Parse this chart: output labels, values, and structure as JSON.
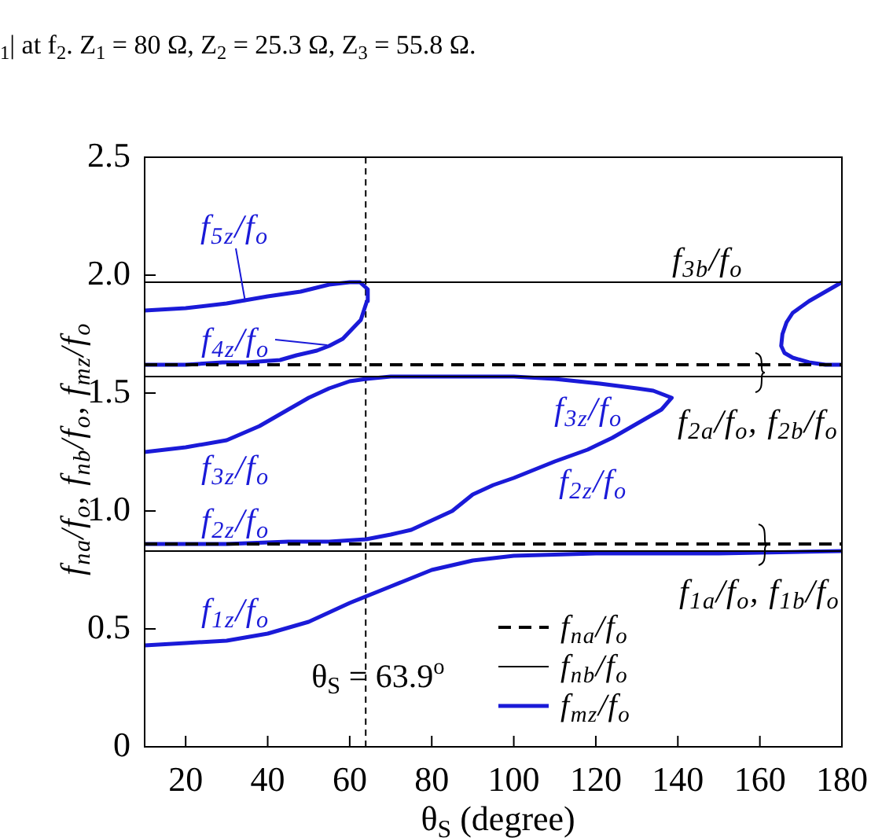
{
  "chart_data": {
    "type": "line",
    "xlabel": "θ$_{S}$ (degree)",
    "ylabel": "f$_{na}$/f$_{o}$, f$_{nb}$/f$_{o}$, f$_{mz}$/f$_{o}$",
    "xlim": [
      10,
      180
    ],
    "xticks": [
      20,
      40,
      60,
      80,
      100,
      120,
      140,
      160,
      180
    ],
    "ylim": [
      0,
      2.5
    ],
    "yticks": [
      0,
      0.5,
      {
        "value": 1,
        "label": "1.0"
      },
      1.5,
      {
        "value": 2,
        "label": "2.0"
      },
      2.5
    ],
    "marker": "none",
    "legend": "bottom right",
    "series": [
      {
        "name": "f$_{na}$/f$_{o}$",
        "color": "#000000",
        "line_style": "dashed",
        "x": [
          10,
          180
        ],
        "values": [
          0.86,
          0.86
        ]
      },
      {
        "color": "#000000",
        "line_style": "dashed",
        "x": [
          10,
          180
        ],
        "values": [
          1.62,
          1.62
        ]
      },
      {
        "name": "f$_{nb}$/f$_{o}$",
        "color": "#000000",
        "line_style": "solid",
        "x": [
          10,
          180
        ],
        "values": [
          0.83,
          0.83
        ]
      },
      {
        "color": "#000000",
        "line_style": "solid",
        "x": [
          10,
          180
        ],
        "values": [
          1.57,
          1.57
        ]
      },
      {
        "color": "#000000",
        "line_style": "solid",
        "x": [
          10,
          180
        ],
        "values": [
          1.97,
          1.97
        ]
      },
      {
        "name": "f$_{mz}$/f$_{o}$",
        "color": "#1a1ad8",
        "line_style": "solid",
        "x": [
          10,
          20,
          30,
          40,
          50,
          60,
          70,
          80,
          90,
          100,
          120,
          150,
          180
        ],
        "values": [
          0.43,
          0.44,
          0.45,
          0.48,
          0.53,
          0.61,
          0.68,
          0.75,
          0.79,
          0.81,
          0.82,
          0.82,
          0.83
        ]
      },
      {
        "color": "#1a1ad8",
        "line_style": "solid",
        "x": [
          10,
          20,
          30,
          38,
          45,
          50,
          55,
          60,
          64,
          70,
          80,
          90,
          100,
          110,
          121,
          130,
          134,
          137,
          138.5,
          136,
          134,
          130,
          124,
          118,
          110,
          100,
          95,
          90,
          85,
          80,
          75,
          70,
          64,
          55,
          45,
          30,
          20,
          10
        ],
        "values": [
          1.25,
          1.27,
          1.3,
          1.36,
          1.43,
          1.48,
          1.52,
          1.55,
          1.56,
          1.57,
          1.57,
          1.57,
          1.57,
          1.56,
          1.54,
          1.52,
          1.51,
          1.49,
          1.48,
          1.43,
          1.41,
          1.37,
          1.31,
          1.26,
          1.21,
          1.14,
          1.11,
          1.07,
          1.0,
          0.96,
          0.92,
          0.9,
          0.88,
          0.87,
          0.87,
          0.86,
          0.86,
          0.86
        ]
      },
      {
        "color": "#1a1ad8",
        "line_style": "solid",
        "x": [
          10,
          20,
          29,
          35,
          43,
          47,
          52,
          55,
          58.3,
          60.5,
          62.7,
          64.2,
          64.4,
          62.5,
          60,
          55,
          48,
          40,
          30,
          20,
          10
        ],
        "values": [
          1.62,
          1.62,
          1.63,
          1.63,
          1.64,
          1.66,
          1.68,
          1.7,
          1.73,
          1.77,
          1.81,
          1.89,
          1.94,
          1.97,
          1.97,
          1.96,
          1.93,
          1.91,
          1.88,
          1.86,
          1.85
        ]
      },
      {
        "color": "#1a1ad8",
        "line_style": "solid",
        "x": [
          180,
          176,
          172,
          168,
          166.5,
          165.5,
          165.2,
          166,
          168,
          172,
          176,
          180
        ],
        "values": [
          1.97,
          1.93,
          1.89,
          1.84,
          1.8,
          1.75,
          1.7,
          1.67,
          1.65,
          1.63,
          1.62,
          1.62
        ]
      }
    ],
    "ref_lines": [
      {
        "axis": "x",
        "value": 63.9,
        "label": "θ$_{S}$ = 63.9$^{o}$",
        "line_style": "dashed",
        "color": "#000000"
      }
    ],
    "annotations": [
      "f$_{5z}$/f$_{o}$",
      "f$_{4z}$/f$_{o}$",
      "f$_{3z}$/f$_{o}$",
      "f$_{2z}$/f$_{o}$",
      "f$_{1z}$/f$_{o}$",
      "f$_{3z}$/f$_{o}$",
      "f$_{2z}$/f$_{o}$",
      "f$_{3b}$/f$_{o}$",
      "f$_{2a}$/f$_{o}$, f$_{2b}$/f$_{o}$",
      "f$_{1a}$/f$_{o}$, f$_{1b}$/f$_{o}$",
      "$_{1}$| at f$_{2}$. Z$_{1}$ = 80 Ω, Z$_{2}$ = 25.3 Ω, Z$_{3}$ = 55.8 Ω."
    ]
  }
}
